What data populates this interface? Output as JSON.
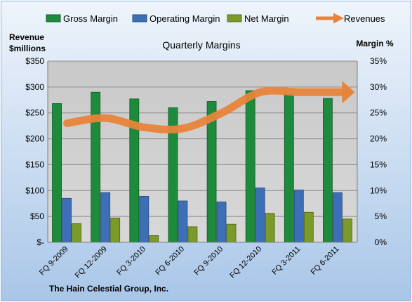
{
  "chart_data": {
    "type": "bar",
    "title": "Quarterly Margins",
    "left_axis_label_line1": "Revenue",
    "left_axis_label_line2": "$millions",
    "right_axis_label": "Margin %",
    "footer": "The Hain Celestial Group, Inc.",
    "categories": [
      "FQ 9-2009",
      "FQ 12-2009",
      "FQ 3-2010",
      "FQ 6-2010",
      "FQ 9-2010",
      "FQ 12-2010",
      "FQ 3-2011",
      "FQ 6-2011"
    ],
    "left_ylim": [
      0,
      350
    ],
    "right_ylim": [
      0,
      35
    ],
    "left_ticks": [
      "$-",
      "$50",
      "$100",
      "$150",
      "$200",
      "$250",
      "$300",
      "$350"
    ],
    "right_ticks": [
      "0%",
      "5%",
      "10%",
      "15%",
      "20%",
      "25%",
      "30%",
      "35%"
    ],
    "series": [
      {
        "name": "Gross Margin",
        "type": "bar",
        "axis": "right",
        "color": "#1e8a3c",
        "values": [
          26.8,
          29.0,
          27.7,
          26.0,
          27.2,
          29.3,
          28.7,
          27.8
        ]
      },
      {
        "name": "Operating Margin",
        "type": "bar",
        "axis": "right",
        "color": "#3d6fb6",
        "values": [
          8.5,
          9.6,
          8.9,
          8.0,
          7.8,
          10.5,
          10.1,
          9.6
        ]
      },
      {
        "name": "Net Margin",
        "type": "bar",
        "axis": "right",
        "color": "#7a9a2a",
        "values": [
          3.6,
          4.7,
          1.3,
          3.0,
          3.5,
          5.6,
          5.8,
          4.5
        ]
      },
      {
        "name": "Revenues",
        "type": "line",
        "axis": "left",
        "color": "#e8843a",
        "values": [
          230,
          240,
          222,
          220,
          250,
          290,
          290,
          290
        ]
      }
    ],
    "grid": true,
    "legend": "top"
  }
}
